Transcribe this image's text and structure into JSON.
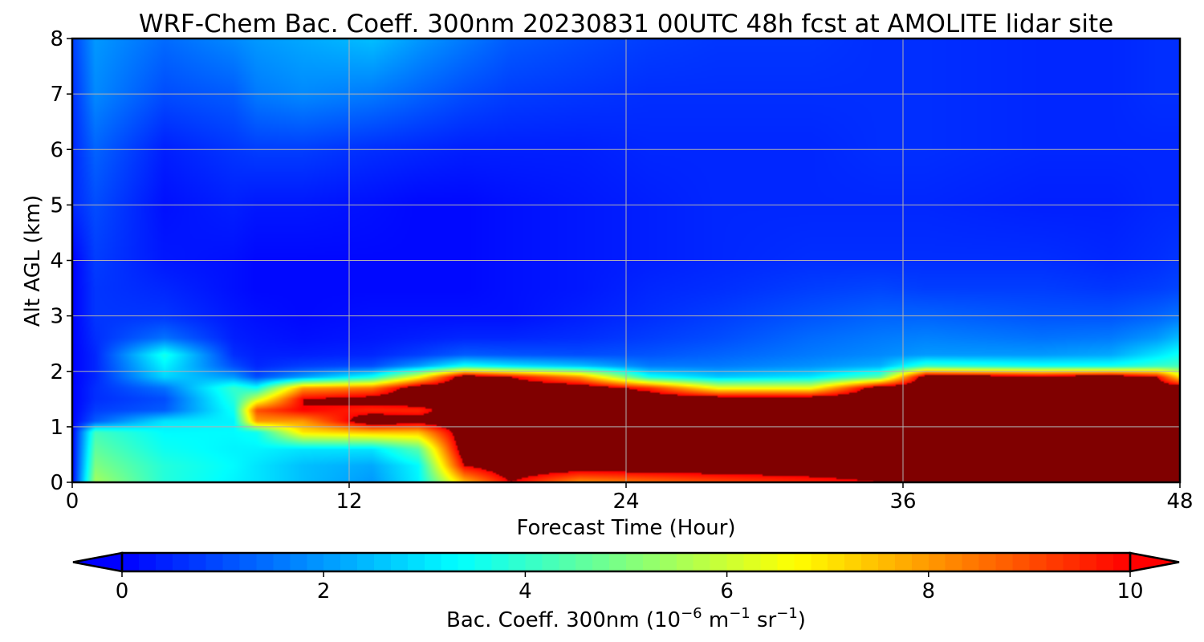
{
  "chart_data": {
    "type": "heatmap",
    "title": "WRF-Chem Bac. Coeff. 300nm  20230831 00UTC 48h fcst at AMOLITE lidar site",
    "xlabel": "Forecast Time (Hour)",
    "ylabel": "Alt AGL (km)",
    "xlim": [
      0,
      48
    ],
    "ylim": [
      0,
      8
    ],
    "xticks": [
      0,
      12,
      24,
      36,
      48
    ],
    "yticks": [
      0,
      1,
      2,
      3,
      4,
      5,
      6,
      7,
      8
    ],
    "grid": true,
    "colormap": "jet",
    "colorbar": {
      "label_main": "Bac. Coeff. 300nm  (10",
      "label_exp1": "−6",
      "label_mid": " m",
      "label_exp2": "−1",
      "label_mid2": " sr",
      "label_exp3": "−1",
      "label_end": ")",
      "range": [
        0,
        10
      ],
      "ticks": [
        0,
        2,
        4,
        6,
        8,
        10
      ],
      "extend": "both",
      "orientation": "horizontal"
    },
    "profile_hours": [
      0,
      1,
      4,
      7,
      8,
      10,
      13,
      15,
      17,
      19,
      22,
      25,
      28,
      32,
      35,
      37,
      42,
      45,
      47,
      48
    ],
    "profile_altitudes_km": [
      0.0,
      0.3,
      0.6,
      0.9,
      1.1,
      1.3,
      1.5,
      1.7,
      1.9,
      2.1,
      2.3,
      2.6,
      3.0,
      3.5,
      4.0,
      5.0,
      6.0,
      7.0,
      8.0
    ],
    "values": [
      [
        0.0,
        0.0,
        0.0,
        0.0,
        0.0,
        0.0,
        0.0,
        0.0,
        0.0,
        0.0,
        0.0,
        0.0,
        0.0,
        0.0,
        0.0,
        0.5,
        0.5,
        0.6,
        0.8
      ],
      [
        5.5,
        5.0,
        4.6,
        4.2,
        1.2,
        0.8,
        0.6,
        0.6,
        0.5,
        0.5,
        0.5,
        0.6,
        0.7,
        0.7,
        0.8,
        1.0,
        1.3,
        1.8,
        2.0
      ],
      [
        3.8,
        3.8,
        3.5,
        3.3,
        3.0,
        1.2,
        1.0,
        1.5,
        2.8,
        3.2,
        3.6,
        1.5,
        0.7,
        0.5,
        0.3,
        0.2,
        0.4,
        1.0,
        1.4
      ],
      [
        3.2,
        3.3,
        3.2,
        3.3,
        3.2,
        3.5,
        3.8,
        4.0,
        2.0,
        1.0,
        0.6,
        0.4,
        0.3,
        0.2,
        0.2,
        0.4,
        0.7,
        1.2,
        1.8
      ],
      [
        3.0,
        3.0,
        3.2,
        3.5,
        8.0,
        9.0,
        6.0,
        3.5,
        1.0,
        0.5,
        0.4,
        0.3,
        0.2,
        0.1,
        0.1,
        0.3,
        0.8,
        1.6,
        2.0
      ],
      [
        2.5,
        2.5,
        3.0,
        7.0,
        8.0,
        10.0,
        10.0,
        8.0,
        2.0,
        0.8,
        0.4,
        0.2,
        0.1,
        0.1,
        0.1,
        0.3,
        0.8,
        1.8,
        2.2
      ],
      [
        2.0,
        2.2,
        3.0,
        7.5,
        11.0,
        9.5,
        10.5,
        8.5,
        3.5,
        1.0,
        0.5,
        0.3,
        0.2,
        0.1,
        0.1,
        0.2,
        0.6,
        1.6,
        2.5
      ],
      [
        3.2,
        3.3,
        4.5,
        7.5,
        10.5,
        9.5,
        11.0,
        11.0,
        6.5,
        2.0,
        0.8,
        0.4,
        0.2,
        0.1,
        0.1,
        0.1,
        0.5,
        1.3,
        2.0
      ],
      [
        7.5,
        10.0,
        11.0,
        11.0,
        11.0,
        11.0,
        11.0,
        11.0,
        11.0,
        3.5,
        1.2,
        0.5,
        0.2,
        0.1,
        0.1,
        0.1,
        0.4,
        1.0,
        1.6
      ],
      [
        10.0,
        11.0,
        11.0,
        11.0,
        11.0,
        11.0,
        11.0,
        11.0,
        10.0,
        3.0,
        1.1,
        0.5,
        0.2,
        0.2,
        0.2,
        0.2,
        0.4,
        0.8,
        1.2
      ],
      [
        8.0,
        11.0,
        11.0,
        11.0,
        11.0,
        11.0,
        11.0,
        11.0,
        8.0,
        2.5,
        1.0,
        0.6,
        0.4,
        0.3,
        0.3,
        0.3,
        0.4,
        0.7,
        1.0
      ],
      [
        8.5,
        11.0,
        11.0,
        11.0,
        11.0,
        11.0,
        11.0,
        9.5,
        3.5,
        1.6,
        1.1,
        0.8,
        0.6,
        0.5,
        0.4,
        0.4,
        0.5,
        0.6,
        0.8
      ],
      [
        9.0,
        11.0,
        11.0,
        11.0,
        11.0,
        11.0,
        11.0,
        6.5,
        2.6,
        1.6,
        1.3,
        1.0,
        0.8,
        0.6,
        0.5,
        0.5,
        0.5,
        0.6,
        0.7
      ],
      [
        9.5,
        11.0,
        11.0,
        11.0,
        11.0,
        11.0,
        11.0,
        6.5,
        3.0,
        1.9,
        1.6,
        1.4,
        1.1,
        0.8,
        0.6,
        0.5,
        0.5,
        0.6,
        0.7
      ],
      [
        10.0,
        11.0,
        11.0,
        11.0,
        11.0,
        11.0,
        11.0,
        11.0,
        4.5,
        2.3,
        1.8,
        1.6,
        1.3,
        0.9,
        0.6,
        0.5,
        0.6,
        0.6,
        0.6
      ],
      [
        11.0,
        11.0,
        11.0,
        11.0,
        11.0,
        11.0,
        11.0,
        11.0,
        11.0,
        4.0,
        2.0,
        1.7,
        1.3,
        0.8,
        0.6,
        0.5,
        0.6,
        0.6,
        0.6
      ],
      [
        11.0,
        11.0,
        11.0,
        11.0,
        11.0,
        11.0,
        11.0,
        11.0,
        10.5,
        3.5,
        2.0,
        1.5,
        1.1,
        0.8,
        0.6,
        0.4,
        0.5,
        0.5,
        0.5
      ],
      [
        11.0,
        11.0,
        11.0,
        11.0,
        11.0,
        11.0,
        11.0,
        11.0,
        11.0,
        3.5,
        2.2,
        1.6,
        1.1,
        0.7,
        0.5,
        0.4,
        0.5,
        0.5,
        0.5
      ],
      [
        11.0,
        11.0,
        11.0,
        11.0,
        11.0,
        11.0,
        11.0,
        11.0,
        10.0,
        4.0,
        3.0,
        2.0,
        1.3,
        0.8,
        0.6,
        0.5,
        0.5,
        0.6,
        0.6
      ],
      [
        11.0,
        11.0,
        11.0,
        11.0,
        11.0,
        11.0,
        11.0,
        11.0,
        7.0,
        4.2,
        3.5,
        2.5,
        1.5,
        0.9,
        0.7,
        0.5,
        0.5,
        0.6,
        0.6
      ]
    ]
  }
}
